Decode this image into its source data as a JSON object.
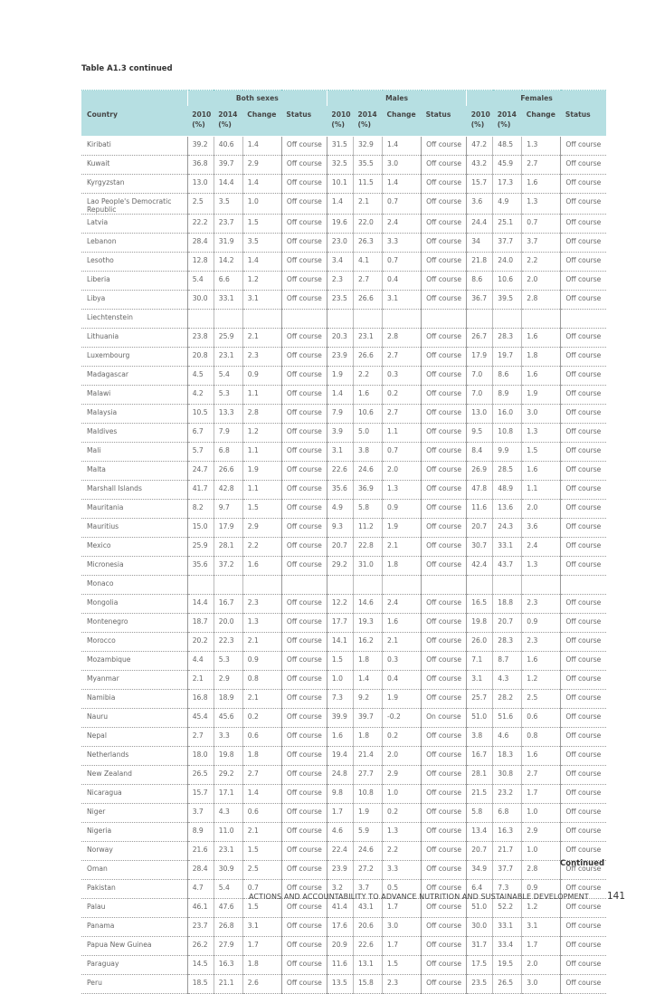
{
  "caption": "Table A1.3 continued",
  "groups": [
    "Both sexes",
    "Males",
    "Females"
  ],
  "headers": {
    "country": "Country",
    "y2010": "2010 (%)",
    "y2014": "2014 (%)",
    "change": "Change",
    "status": "Status"
  },
  "rows": [
    [
      "Kiribati",
      "39.2",
      "40.6",
      "1.4",
      "Off course",
      "31.5",
      "32.9",
      "1.4",
      "Off course",
      "47.2",
      "48.5",
      "1.3",
      "Off course"
    ],
    [
      "Kuwait",
      "36.8",
      "39.7",
      "2.9",
      "Off course",
      "32.5",
      "35.5",
      "3.0",
      "Off course",
      "43.2",
      "45.9",
      "2.7",
      "Off course"
    ],
    [
      "Kyrgyzstan",
      "13.0",
      "14.4",
      "1.4",
      "Off course",
      "10.1",
      "11.5",
      "1.4",
      "Off course",
      "15.7",
      "17.3",
      "1.6",
      "Off course"
    ],
    [
      "Lao People's Democratic Republic",
      "2.5",
      "3.5",
      "1.0",
      "Off course",
      "1.4",
      "2.1",
      "0.7",
      "Off course",
      "3.6",
      "4.9",
      "1.3",
      "Off course"
    ],
    [
      "Latvia",
      "22.2",
      "23.7",
      "1.5",
      "Off course",
      "19.6",
      "22.0",
      "2.4",
      "Off course",
      "24.4",
      "25.1",
      "0.7",
      "Off course"
    ],
    [
      "Lebanon",
      "28.4",
      "31.9",
      "3.5",
      "Off course",
      "23.0",
      "26.3",
      "3.3",
      "Off course",
      "34",
      "37.7",
      "3.7",
      "Off course"
    ],
    [
      "Lesotho",
      "12.8",
      "14.2",
      "1.4",
      "Off course",
      "3.4",
      "4.1",
      "0.7",
      "Off course",
      "21.8",
      "24.0",
      "2.2",
      "Off course"
    ],
    [
      "Liberia",
      "5.4",
      "6.6",
      "1.2",
      "Off course",
      "2.3",
      "2.7",
      "0.4",
      "Off course",
      "8.6",
      "10.6",
      "2.0",
      "Off course"
    ],
    [
      "Libya",
      "30.0",
      "33.1",
      "3.1",
      "Off course",
      "23.5",
      "26.6",
      "3.1",
      "Off course",
      "36.7",
      "39.5",
      "2.8",
      "Off course"
    ],
    [
      "Liechtenstein",
      "",
      "",
      "",
      "",
      "",
      "",
      "",
      "",
      "",
      "",
      "",
      ""
    ],
    [
      "Lithuania",
      "23.8",
      "25.9",
      "2.1",
      "Off course",
      "20.3",
      "23.1",
      "2.8",
      "Off course",
      "26.7",
      "28.3",
      "1.6",
      "Off course"
    ],
    [
      "Luxembourg",
      "20.8",
      "23.1",
      "2.3",
      "Off course",
      "23.9",
      "26.6",
      "2.7",
      "Off course",
      "17.9",
      "19.7",
      "1.8",
      "Off course"
    ],
    [
      "Madagascar",
      "4.5",
      "5.4",
      "0.9",
      "Off course",
      "1.9",
      "2.2",
      "0.3",
      "Off course",
      "7.0",
      "8.6",
      "1.6",
      "Off course"
    ],
    [
      "Malawi",
      "4.2",
      "5.3",
      "1.1",
      "Off course",
      "1.4",
      "1.6",
      "0.2",
      "Off course",
      "7.0",
      "8.9",
      "1.9",
      "Off course"
    ],
    [
      "Malaysia",
      "10.5",
      "13.3",
      "2.8",
      "Off course",
      "7.9",
      "10.6",
      "2.7",
      "Off course",
      "13.0",
      "16.0",
      "3.0",
      "Off course"
    ],
    [
      "Maldives",
      "6.7",
      "7.9",
      "1.2",
      "Off course",
      "3.9",
      "5.0",
      "1.1",
      "Off course",
      "9.5",
      "10.8",
      "1.3",
      "Off course"
    ],
    [
      "Mali",
      "5.7",
      "6.8",
      "1.1",
      "Off course",
      "3.1",
      "3.8",
      "0.7",
      "Off course",
      "8.4",
      "9.9",
      "1.5",
      "Off course"
    ],
    [
      "Malta",
      "24.7",
      "26.6",
      "1.9",
      "Off course",
      "22.6",
      "24.6",
      "2.0",
      "Off course",
      "26.9",
      "28.5",
      "1.6",
      "Off course"
    ],
    [
      "Marshall Islands",
      "41.7",
      "42.8",
      "1.1",
      "Off course",
      "35.6",
      "36.9",
      "1.3",
      "Off course",
      "47.8",
      "48.9",
      "1.1",
      "Off course"
    ],
    [
      "Mauritania",
      "8.2",
      "9.7",
      "1.5",
      "Off course",
      "4.9",
      "5.8",
      "0.9",
      "Off course",
      "11.6",
      "13.6",
      "2.0",
      "Off course"
    ],
    [
      "Mauritius",
      "15.0",
      "17.9",
      "2.9",
      "Off course",
      "9.3",
      "11.2",
      "1.9",
      "Off course",
      "20.7",
      "24.3",
      "3.6",
      "Off course"
    ],
    [
      "Mexico",
      "25.9",
      "28.1",
      "2.2",
      "Off course",
      "20.7",
      "22.8",
      "2.1",
      "Off course",
      "30.7",
      "33.1",
      "2.4",
      "Off course"
    ],
    [
      "Micronesia",
      "35.6",
      "37.2",
      "1.6",
      "Off course",
      "29.2",
      "31.0",
      "1.8",
      "Off course",
      "42.4",
      "43.7",
      "1.3",
      "Off course"
    ],
    [
      "Monaco",
      "",
      "",
      "",
      "",
      "",
      "",
      "",
      "",
      "",
      "",
      "",
      ""
    ],
    [
      "Mongolia",
      "14.4",
      "16.7",
      "2.3",
      "Off course",
      "12.2",
      "14.6",
      "2.4",
      "Off course",
      "16.5",
      "18.8",
      "2.3",
      "Off course"
    ],
    [
      "Montenegro",
      "18.7",
      "20.0",
      "1.3",
      "Off course",
      "17.7",
      "19.3",
      "1.6",
      "Off course",
      "19.8",
      "20.7",
      "0.9",
      "Off course"
    ],
    [
      "Morocco",
      "20.2",
      "22.3",
      "2.1",
      "Off course",
      "14.1",
      "16.2",
      "2.1",
      "Off course",
      "26.0",
      "28.3",
      "2.3",
      "Off course"
    ],
    [
      "Mozambique",
      "4.4",
      "5.3",
      "0.9",
      "Off course",
      "1.5",
      "1.8",
      "0.3",
      "Off course",
      "7.1",
      "8.7",
      "1.6",
      "Off course"
    ],
    [
      "Myanmar",
      "2.1",
      "2.9",
      "0.8",
      "Off course",
      "1.0",
      "1.4",
      "0.4",
      "Off course",
      "3.1",
      "4.3",
      "1.2",
      "Off course"
    ],
    [
      "Namibia",
      "16.8",
      "18.9",
      "2.1",
      "Off course",
      "7.3",
      "9.2",
      "1.9",
      "Off course",
      "25.7",
      "28.2",
      "2.5",
      "Off course"
    ],
    [
      "Nauru",
      "45.4",
      "45.6",
      "0.2",
      "Off course",
      "39.9",
      "39.7",
      "-0.2",
      "On course",
      "51.0",
      "51.6",
      "0.6",
      "Off course"
    ],
    [
      "Nepal",
      "2.7",
      "3.3",
      "0.6",
      "Off course",
      "1.6",
      "1.8",
      "0.2",
      "Off course",
      "3.8",
      "4.6",
      "0.8",
      "Off course"
    ],
    [
      "Netherlands",
      "18.0",
      "19.8",
      "1.8",
      "Off course",
      "19.4",
      "21.4",
      "2.0",
      "Off course",
      "16.7",
      "18.3",
      "1.6",
      "Off course"
    ],
    [
      "New Zealand",
      "26.5",
      "29.2",
      "2.7",
      "Off course",
      "24.8",
      "27.7",
      "2.9",
      "Off course",
      "28.1",
      "30.8",
      "2.7",
      "Off course"
    ],
    [
      "Nicaragua",
      "15.7",
      "17.1",
      "1.4",
      "Off course",
      "9.8",
      "10.8",
      "1.0",
      "Off course",
      "21.5",
      "23.2",
      "1.7",
      "Off course"
    ],
    [
      "Niger",
      "3.7",
      "4.3",
      "0.6",
      "Off course",
      "1.7",
      "1.9",
      "0.2",
      "Off course",
      "5.8",
      "6.8",
      "1.0",
      "Off course"
    ],
    [
      "Nigeria",
      "8.9",
      "11.0",
      "2.1",
      "Off course",
      "4.6",
      "5.9",
      "1.3",
      "Off course",
      "13.4",
      "16.3",
      "2.9",
      "Off course"
    ],
    [
      "Norway",
      "21.6",
      "23.1",
      "1.5",
      "Off course",
      "22.4",
      "24.6",
      "2.2",
      "Off course",
      "20.7",
      "21.7",
      "1.0",
      "Off course"
    ],
    [
      "Oman",
      "28.4",
      "30.9",
      "2.5",
      "Off course",
      "23.9",
      "27.2",
      "3.3",
      "Off course",
      "34.9",
      "37.7",
      "2.8",
      "Off course"
    ],
    [
      "Pakistan",
      "4.7",
      "5.4",
      "0.7",
      "Off course",
      "3.2",
      "3.7",
      "0.5",
      "Off course",
      "6.4",
      "7.3",
      "0.9",
      "Off course"
    ],
    [
      "Palau",
      "46.1",
      "47.6",
      "1.5",
      "Off course",
      "41.4",
      "43.1",
      "1.7",
      "Off course",
      "51.0",
      "52.2",
      "1.2",
      "Off course"
    ],
    [
      "Panama",
      "23.7",
      "26.8",
      "3.1",
      "Off course",
      "17.6",
      "20.6",
      "3.0",
      "Off course",
      "30.0",
      "33.1",
      "3.1",
      "Off course"
    ],
    [
      "Papua New Guinea",
      "26.2",
      "27.9",
      "1.7",
      "Off course",
      "20.9",
      "22.6",
      "1.7",
      "Off course",
      "31.7",
      "33.4",
      "1.7",
      "Off course"
    ],
    [
      "Paraguay",
      "14.5",
      "16.3",
      "1.8",
      "Off course",
      "11.6",
      "13.1",
      "1.5",
      "Off course",
      "17.5",
      "19.5",
      "2.0",
      "Off course"
    ],
    [
      "Peru",
      "18.5",
      "21.1",
      "2.6",
      "Off course",
      "13.5",
      "15.8",
      "2.3",
      "Off course",
      "23.5",
      "26.5",
      "3.0",
      "Off course"
    ]
  ],
  "continued": "Continued",
  "footer": "ACTIONS AND ACCOUNTABILITY TO ADVANCE NUTRITION AND SUSTAINABLE DEVELOPMENT",
  "page_number": "141",
  "colors": {
    "header_fill": "#b6dfe2",
    "text": "#555555"
  }
}
